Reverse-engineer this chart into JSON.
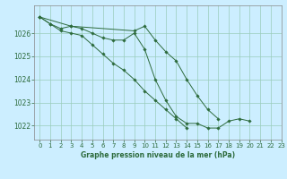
{
  "title": "Graphe pression niveau de la mer (hPa)",
  "bg_color": "#cceeff",
  "grid_color": "#99ccbb",
  "line_color": "#2d6b3c",
  "xlim": [
    -0.5,
    23
  ],
  "ylim": [
    1021.4,
    1027.2
  ],
  "yticks": [
    1022,
    1023,
    1024,
    1025,
    1026
  ],
  "xticks": [
    0,
    1,
    2,
    3,
    4,
    5,
    6,
    7,
    8,
    9,
    10,
    11,
    12,
    13,
    14,
    15,
    16,
    17,
    18,
    19,
    20,
    21,
    22,
    23
  ],
  "series": [
    [
      1026.7,
      1026.4,
      1026.2,
      1026.3,
      1026.2,
      1026.0,
      1025.8,
      1025.7,
      1025.7,
      1026.0,
      1025.3,
      1024.0,
      1023.1,
      1022.4,
      1022.1,
      1022.1,
      1021.9,
      1021.9,
      1022.2,
      1022.3,
      1022.2,
      null,
      null,
      null
    ],
    [
      1026.7,
      1026.4,
      1026.1,
      1026.0,
      1025.9,
      1025.5,
      1025.1,
      1024.7,
      1024.4,
      1024.0,
      1023.5,
      1023.1,
      1022.7,
      1022.3,
      1021.9,
      null,
      null,
      null,
      null,
      null,
      null,
      null,
      null,
      null
    ],
    [
      1026.7,
      null,
      null,
      1026.3,
      null,
      null,
      null,
      null,
      null,
      1026.1,
      1026.3,
      1025.7,
      1025.2,
      1024.8,
      1024.0,
      1023.3,
      1022.7,
      1022.3,
      null,
      null,
      null,
      null,
      null,
      null
    ]
  ]
}
